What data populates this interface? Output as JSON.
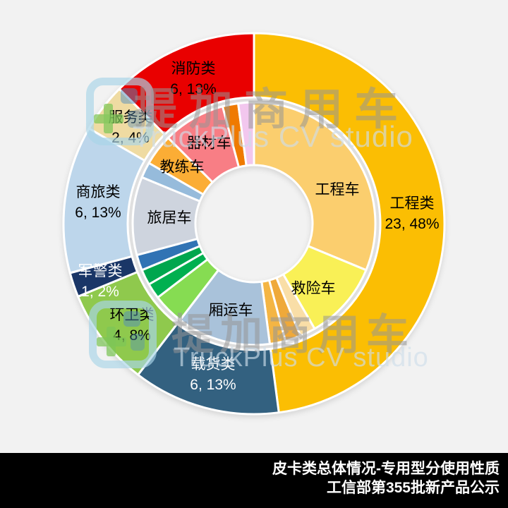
{
  "title_bar": {
    "line1": "皮卡类总体情况-专用型分使用性质",
    "line2": "工信部第355批新产品公示",
    "bg_color": "#000000",
    "text_color": "#FFFFFF"
  },
  "watermark": {
    "brand_cn": "提加商用车",
    "brand_en": "TruckPlus CV studio"
  },
  "chart_data": {
    "type": "donut-nested",
    "total": 48,
    "background": "#F2F2F2",
    "legend_position": "none",
    "rings": [
      {
        "name": "outer",
        "segments": [
          {
            "label": "工程类",
            "value": 23,
            "value_text": "23, 48%",
            "color": "#FBBE03",
            "label_color": "#000000"
          },
          {
            "label": "载货类",
            "value": 6,
            "value_text": "6, 13%",
            "color": "#336180",
            "label_color": "#FFFFFF"
          },
          {
            "label": "环卫类",
            "value": 4,
            "value_text": "4, 8%",
            "color": "#8FC94D",
            "label_color": "#000000"
          },
          {
            "label": "军警类",
            "value": 1,
            "value_text": "1, 2%",
            "color": "#1A3667",
            "label_color": "#FFFFFF"
          },
          {
            "label": "商旅类",
            "value": 6,
            "value_text": "6, 13%",
            "color": "#BDD6EB",
            "label_color": "#000000"
          },
          {
            "label": "服务类",
            "value": 2,
            "value_text": "2, 4%",
            "color": "#EFDBA2",
            "label_color": "#000000"
          },
          {
            "label": "消防类",
            "value": 6,
            "value_text": "6, 13%",
            "color": "#E90000",
            "label_color": "#000000"
          }
        ]
      },
      {
        "name": "inner",
        "segments": [
          {
            "label": "工程车",
            "value": 15,
            "color": "#FBCE6E"
          },
          {
            "label": "救险车",
            "value": 5,
            "color": "#F9F056"
          },
          {
            "label": "",
            "value": 1,
            "color": "#F9DEA7"
          },
          {
            "label": "",
            "value": 1,
            "color": "#EFA93A"
          },
          {
            "label": "",
            "value": 1,
            "color": "#F4B544"
          },
          {
            "label": "厢运车",
            "value": 6,
            "color": "#A9C2DA"
          },
          {
            "label": "",
            "value": 2,
            "color": "#86DC52"
          },
          {
            "label": "",
            "value": 1,
            "color": "#00B050"
          },
          {
            "label": "",
            "value": 1,
            "color": "#00A64E"
          },
          {
            "label": "",
            "value": 1,
            "color": "#3173B4"
          },
          {
            "label": "旅居车",
            "value": 5,
            "color": "#CED4DE"
          },
          {
            "label": "",
            "value": 1,
            "color": "#96BBDB"
          },
          {
            "label": "教练车",
            "value": 2,
            "color": "#FBAD35"
          },
          {
            "label": "器材车",
            "value": 4,
            "color": "#F87E85"
          },
          {
            "label": "",
            "value": 1,
            "color": "#EF7A00"
          },
          {
            "label": "",
            "value": 1,
            "color": "#F2C7EE"
          }
        ]
      }
    ]
  }
}
